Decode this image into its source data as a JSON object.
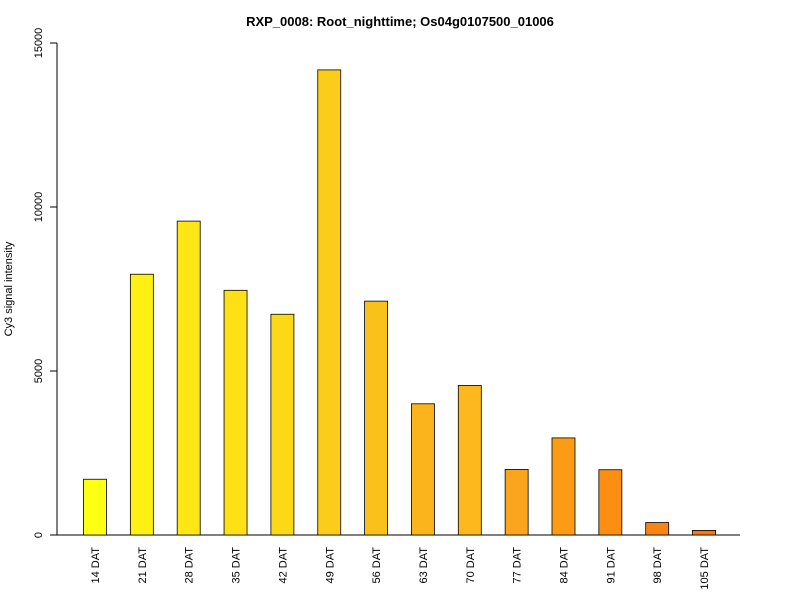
{
  "chart_data": {
    "type": "bar",
    "title": "RXP_0008: Root_nighttime; Os04g0107500_01006",
    "xlabel": "",
    "ylabel": "Cy3 signal intensity",
    "ylim": [
      0,
      15000
    ],
    "yticks": [
      0,
      5000,
      10000,
      15000
    ],
    "ytick_labels": [
      "0",
      "5000",
      "10000",
      "15000"
    ],
    "grid": false,
    "legend": "none",
    "categories": [
      "14 DAT",
      "21 DAT",
      "28 DAT",
      "35 DAT",
      "42 DAT",
      "49 DAT",
      "56 DAT",
      "63 DAT",
      "70 DAT",
      "77 DAT",
      "84 DAT",
      "91 DAT",
      "98 DAT",
      "105 DAT"
    ],
    "values": [
      1700,
      7950,
      9570,
      7460,
      6730,
      14180,
      7130,
      4000,
      4560,
      2000,
      2960,
      1990,
      380,
      140
    ],
    "colors": [
      "#ffff14",
      "#fff014",
      "#ffe614",
      "#ffe014",
      "#fbd917",
      "#fccc1a",
      "#fbc11b",
      "#fbb41c",
      "#fdb81e",
      "#fba41d",
      "#fc9c15",
      "#fc8f12",
      "#f98414",
      "#f97814"
    ]
  }
}
